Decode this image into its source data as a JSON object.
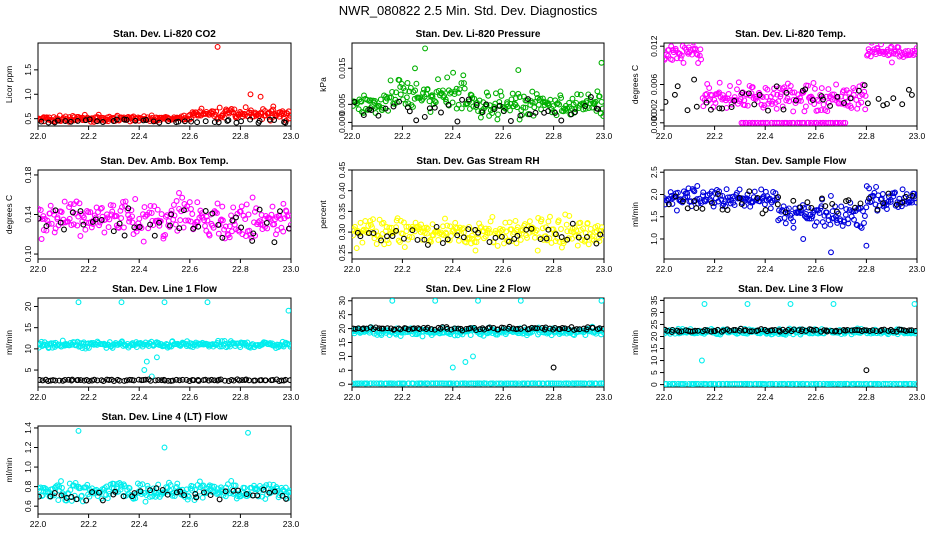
{
  "figure": {
    "title": "NWR_080822  2.5 Min. Std. Dev. Diagnostics"
  },
  "chart_data": [
    {
      "type": "scatter",
      "title": "Stan. Dev. Li-820 CO2",
      "xlabel": "",
      "ylabel": "Licor ppm",
      "xlim": [
        22.0,
        23.0
      ],
      "ylim": [
        0.35,
        2.05
      ],
      "xticks": [
        "22.0",
        "22.2",
        "22.4",
        "22.6",
        "22.8",
        "23.0"
      ],
      "yticks": [
        "0.5",
        "1.0",
        "1.5"
      ],
      "ytick_values": [
        0.5,
        1.0,
        1.5
      ],
      "series": [
        {
          "name": "primary",
          "color": "#ff0000",
          "base": 0.5,
          "noise": 0.06,
          "segments": [
            {
              "x": [
                22.6,
                23.0
              ],
              "base": 0.6,
              "noise": 0.1
            }
          ],
          "outliers": [
            [
              22.71,
              1.97
            ],
            [
              22.84,
              1.0
            ],
            [
              22.88,
              0.95
            ],
            [
              22.93,
              0.75
            ]
          ]
        },
        {
          "name": "reference",
          "color": "#000000",
          "base": 0.45,
          "noise": 0.04,
          "sparse": true
        }
      ]
    },
    {
      "type": "scatter",
      "title": "Stan. Dev. Li-820 Pressure",
      "xlabel": "",
      "ylabel": "kPa",
      "xlim": [
        22.0,
        23.0
      ],
      "ylim": [
        -0.001,
        0.022
      ],
      "xticks": [
        "22.0",
        "22.2",
        "22.4",
        "22.6",
        "22.8",
        "23.0"
      ],
      "yticks": [
        "0.000",
        "0.005",
        "0.015"
      ],
      "ytick_values": [
        0.0,
        0.005,
        0.015
      ],
      "series": [
        {
          "name": "primary",
          "color": "#00b000",
          "base": 0.005,
          "noise": 0.003,
          "segments": [
            {
              "x": [
                22.15,
                22.45
              ],
              "base": 0.008,
              "noise": 0.004
            }
          ],
          "outliers": [
            [
              22.29,
              0.0205
            ],
            [
              22.25,
              0.015
            ],
            [
              22.66,
              0.0145
            ],
            [
              22.99,
              0.0165
            ]
          ]
        },
        {
          "name": "reference",
          "color": "#000000",
          "base": 0.004,
          "noise": 0.003,
          "sparse": true
        }
      ]
    },
    {
      "type": "scatter",
      "title": "Stan. Dev. Li-820 Temp.",
      "xlabel": "",
      "ylabel": "degrees C",
      "xlim": [
        22.0,
        23.0
      ],
      "ylim": [
        -0.0005,
        0.0125
      ],
      "xticks": [
        "22.0",
        "22.2",
        "22.4",
        "22.6",
        "22.8",
        "23.0"
      ],
      "yticks": [
        "0.000",
        "0.002",
        "0.006",
        "0.012"
      ],
      "ytick_values": [
        0.0,
        0.002,
        0.006,
        0.012
      ],
      "series": [
        {
          "name": "primary",
          "color": "#ff00ff",
          "base": 0.004,
          "noise": 0.002,
          "segments": [
            {
              "x": [
                22.0,
                22.15
              ],
              "base": 0.011,
              "noise": 0.0015
            },
            {
              "x": [
                22.15,
                22.8
              ],
              "base": 0.004,
              "noise": 0.002
            },
            {
              "x": [
                22.8,
                23.0
              ],
              "base": 0.011,
              "noise": 0.0012
            },
            {
              "x": [
                22.3,
                22.72
              ],
              "base": 0.0,
              "noise": 0.0,
              "flat": true
            }
          ]
        },
        {
          "name": "reference",
          "color": "#000000",
          "base": 0.004,
          "noise": 0.002,
          "sparse": true
        }
      ]
    },
    {
      "type": "scatter",
      "title": "Stan. Dev. Amb. Box Temp.",
      "xlabel": "",
      "ylabel": "degrees C",
      "xlim": [
        22.0,
        23.0
      ],
      "ylim": [
        0.095,
        0.185
      ],
      "xticks": [
        "22.0",
        "22.2",
        "22.4",
        "22.6",
        "22.8",
        "23.0"
      ],
      "yticks": [
        "0.10",
        "0.14",
        "0.18"
      ],
      "ytick_values": [
        0.1,
        0.14,
        0.18
      ],
      "series": [
        {
          "name": "primary",
          "color": "#ff00ff",
          "base": 0.135,
          "noise": 0.018
        },
        {
          "name": "reference",
          "color": "#000000",
          "base": 0.13,
          "noise": 0.015,
          "sparse": true
        }
      ]
    },
    {
      "type": "scatter",
      "title": "Stan. Dev. Gas Stream RH",
      "xlabel": "",
      "ylabel": "percent",
      "xlim": [
        22.0,
        23.0
      ],
      "ylim": [
        0.235,
        0.45
      ],
      "xticks": [
        "22.0",
        "22.2",
        "22.4",
        "22.6",
        "22.8",
        "23.0"
      ],
      "yticks": [
        "0.25",
        "0.30",
        "0.35",
        "0.40",
        "0.45"
      ],
      "ytick_values": [
        0.25,
        0.3,
        0.35,
        0.4,
        0.45
      ],
      "series": [
        {
          "name": "primary",
          "color": "#ffff00",
          "base": 0.3,
          "noise": 0.03
        },
        {
          "name": "reference",
          "color": "#000000",
          "base": 0.29,
          "noise": 0.025,
          "sparse": true
        }
      ]
    },
    {
      "type": "scatter",
      "title": "Stan. Dev. Sample Flow",
      "xlabel": "",
      "ylabel": "ml/min",
      "xlim": [
        22.0,
        23.0
      ],
      "ylim": [
        0.55,
        2.55
      ],
      "xticks": [
        "22.0",
        "22.2",
        "22.4",
        "22.6",
        "22.8",
        "23.0"
      ],
      "yticks": [
        "1.0",
        "1.5",
        "2.0",
        "2.5"
      ],
      "ytick_values": [
        1.0,
        1.5,
        2.0,
        2.5
      ],
      "series": [
        {
          "name": "primary",
          "color": "#0000dd",
          "base": 1.9,
          "noise": 0.2,
          "segments": [
            {
              "x": [
                22.45,
                22.8
              ],
              "base": 1.55,
              "noise": 0.3
            }
          ],
          "outliers": [
            [
              22.66,
              0.7
            ],
            [
              22.8,
              0.85
            ],
            [
              22.55,
              1.0
            ]
          ]
        },
        {
          "name": "reference",
          "color": "#000000",
          "base": 1.8,
          "noise": 0.2,
          "sparse": true
        }
      ]
    },
    {
      "type": "scatter",
      "title": "Stan. Dev. Line 1 Flow",
      "xlabel": "",
      "ylabel": "ml/min",
      "xlim": [
        22.0,
        23.0
      ],
      "ylim": [
        1.0,
        22.0
      ],
      "xticks": [
        "22.0",
        "22.2",
        "22.4",
        "22.6",
        "22.8",
        "23.0"
      ],
      "yticks": [
        "5",
        "10",
        "15",
        "20"
      ],
      "ytick_values": [
        5,
        10,
        15,
        20
      ],
      "series": [
        {
          "name": "primary",
          "color": "#00eeee",
          "base": 11.0,
          "noise": 0.7,
          "outliers": [
            [
              22.16,
              21.0
            ],
            [
              22.33,
              21.0
            ],
            [
              22.5,
              21.0
            ],
            [
              22.67,
              21.0
            ],
            [
              22.99,
              19.0
            ],
            [
              22.42,
              5.0
            ],
            [
              22.45,
              3.5
            ],
            [
              22.43,
              7.0
            ],
            [
              22.47,
              8.0
            ]
          ]
        },
        {
          "name": "reference",
          "color": "#000000",
          "base": 2.6,
          "noise": 0.2,
          "dense": true
        }
      ]
    },
    {
      "type": "scatter",
      "title": "Stan. Dev. Line 2 Flow",
      "xlabel": "",
      "ylabel": "ml/min",
      "xlim": [
        22.0,
        23.0
      ],
      "ylim": [
        -1.0,
        31.0
      ],
      "xticks": [
        "22.0",
        "22.2",
        "22.4",
        "22.6",
        "22.8",
        "23.0"
      ],
      "yticks": [
        "0",
        "5",
        "10",
        "15",
        "20",
        "25",
        "30"
      ],
      "ytick_values": [
        0,
        5,
        10,
        15,
        20,
        25,
        30
      ],
      "series": [
        {
          "name": "primary",
          "color": "#00eeee",
          "base": 19.0,
          "noise": 1.2,
          "segments": [
            {
              "x": [
                22.0,
                23.0
              ],
              "base": 0.3,
              "noise": 0.1,
              "flat": true
            }
          ],
          "outliers": [
            [
              22.16,
              30.0
            ],
            [
              22.33,
              30.0
            ],
            [
              22.5,
              30.0
            ],
            [
              22.67,
              30.0
            ],
            [
              22.99,
              30.0
            ],
            [
              22.4,
              6.0
            ],
            [
              22.48,
              10.0
            ],
            [
              22.45,
              8.0
            ]
          ]
        },
        {
          "name": "reference",
          "color": "#000000",
          "base": 20.0,
          "noise": 0.5,
          "dense": true,
          "outliers": [
            [
              22.8,
              6.0
            ]
          ]
        }
      ]
    },
    {
      "type": "scatter",
      "title": "Stan. Dev. Line 3 Flow",
      "xlabel": "",
      "ylabel": "ml/min",
      "xlim": [
        22.0,
        23.0
      ],
      "ylim": [
        -1.0,
        36.0
      ],
      "xticks": [
        "22.0",
        "22.2",
        "22.4",
        "22.6",
        "22.8",
        "23.0"
      ],
      "yticks": [
        "0",
        "5",
        "10",
        "15",
        "20",
        "25",
        "30",
        "35"
      ],
      "ytick_values": [
        0,
        5,
        10,
        15,
        20,
        25,
        30,
        35
      ],
      "series": [
        {
          "name": "primary",
          "color": "#00eeee",
          "base": 22.0,
          "noise": 1.0,
          "segments": [
            {
              "x": [
                22.0,
                23.0
              ],
              "base": 0.3,
              "noise": 0.1,
              "flat": true
            }
          ],
          "outliers": [
            [
              22.16,
              33.5
            ],
            [
              22.33,
              33.5
            ],
            [
              22.5,
              33.5
            ],
            [
              22.67,
              33.5
            ],
            [
              22.99,
              33.5
            ],
            [
              22.15,
              10.0
            ]
          ]
        },
        {
          "name": "reference",
          "color": "#000000",
          "base": 22.5,
          "noise": 0.6,
          "dense": true,
          "outliers": [
            [
              22.8,
              6.0
            ]
          ]
        }
      ]
    },
    {
      "type": "scatter",
      "title": "Stan. Dev. Line 4 (LT) Flow",
      "xlabel": "",
      "ylabel": "ml/min",
      "xlim": [
        22.0,
        23.0
      ],
      "ylim": [
        0.52,
        1.42
      ],
      "xticks": [
        "22.0",
        "22.2",
        "22.4",
        "22.6",
        "22.8",
        "23.0"
      ],
      "yticks": [
        "0.6",
        "0.8",
        "1.0",
        "1.2",
        "1.4"
      ],
      "ytick_values": [
        0.6,
        0.8,
        1.0,
        1.2,
        1.4
      ],
      "series": [
        {
          "name": "primary",
          "color": "#00eeee",
          "base": 0.75,
          "noise": 0.08,
          "outliers": [
            [
              22.16,
              1.37
            ],
            [
              22.5,
              1.2
            ],
            [
              22.83,
              1.35
            ]
          ]
        },
        {
          "name": "reference",
          "color": "#000000",
          "base": 0.72,
          "noise": 0.06,
          "sparse": true
        }
      ]
    }
  ]
}
